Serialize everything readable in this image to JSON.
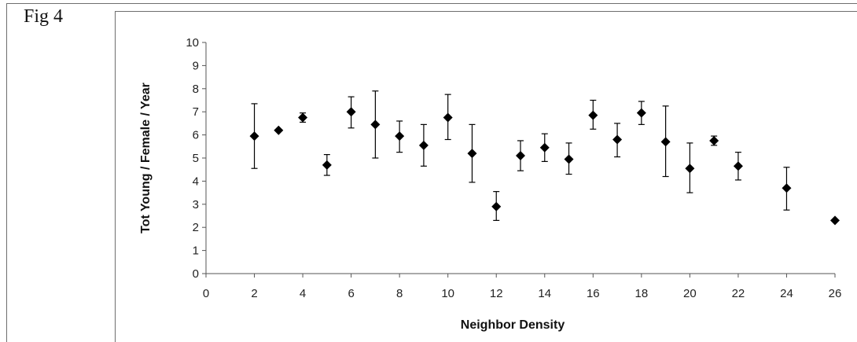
{
  "figure": {
    "label": "Fig 4"
  },
  "chart_data": {
    "type": "scatter",
    "title": "",
    "xlabel": "Neighbor Density",
    "ylabel": "Tot Young / Female / Year",
    "xlim": [
      0,
      26
    ],
    "ylim": [
      0,
      10
    ],
    "xticks": [
      0,
      2,
      4,
      6,
      8,
      10,
      12,
      14,
      16,
      18,
      20,
      22,
      24,
      26
    ],
    "yticks": [
      0,
      1,
      2,
      3,
      4,
      5,
      6,
      7,
      8,
      9,
      10
    ],
    "grid": false,
    "legend": "none",
    "marker": "diamond",
    "marker_color": "#000000",
    "series": [
      {
        "points": [
          {
            "x": 2,
            "y": 5.95,
            "lo": 4.55,
            "hi": 7.35
          },
          {
            "x": 3,
            "y": 6.2,
            "lo": 6.2,
            "hi": 6.2
          },
          {
            "x": 4,
            "y": 6.75,
            "lo": 6.55,
            "hi": 6.95
          },
          {
            "x": 5,
            "y": 4.7,
            "lo": 4.25,
            "hi": 5.15
          },
          {
            "x": 6,
            "y": 7.0,
            "lo": 6.3,
            "hi": 7.65
          },
          {
            "x": 7,
            "y": 6.45,
            "lo": 5.0,
            "hi": 7.9
          },
          {
            "x": 8,
            "y": 5.95,
            "lo": 5.25,
            "hi": 6.6
          },
          {
            "x": 9,
            "y": 5.55,
            "lo": 4.65,
            "hi": 6.45
          },
          {
            "x": 10,
            "y": 6.75,
            "lo": 5.8,
            "hi": 7.75
          },
          {
            "x": 11,
            "y": 5.2,
            "lo": 3.95,
            "hi": 6.45
          },
          {
            "x": 12,
            "y": 2.9,
            "lo": 2.3,
            "hi": 3.55
          },
          {
            "x": 13,
            "y": 5.1,
            "lo": 4.45,
            "hi": 5.75
          },
          {
            "x": 14,
            "y": 5.45,
            "lo": 4.85,
            "hi": 6.05
          },
          {
            "x": 15,
            "y": 4.95,
            "lo": 4.3,
            "hi": 5.65
          },
          {
            "x": 16,
            "y": 6.85,
            "lo": 6.25,
            "hi": 7.5
          },
          {
            "x": 17,
            "y": 5.8,
            "lo": 5.05,
            "hi": 6.5
          },
          {
            "x": 18,
            "y": 6.95,
            "lo": 6.45,
            "hi": 7.45
          },
          {
            "x": 19,
            "y": 5.7,
            "lo": 4.2,
            "hi": 7.25
          },
          {
            "x": 20,
            "y": 4.55,
            "lo": 3.5,
            "hi": 5.65
          },
          {
            "x": 21,
            "y": 5.75,
            "lo": 5.55,
            "hi": 5.95
          },
          {
            "x": 22,
            "y": 4.65,
            "lo": 4.05,
            "hi": 5.25
          },
          {
            "x": 24,
            "y": 3.7,
            "lo": 2.75,
            "hi": 4.6
          },
          {
            "x": 26,
            "y": 2.3,
            "lo": 2.3,
            "hi": 2.3
          }
        ]
      }
    ]
  }
}
